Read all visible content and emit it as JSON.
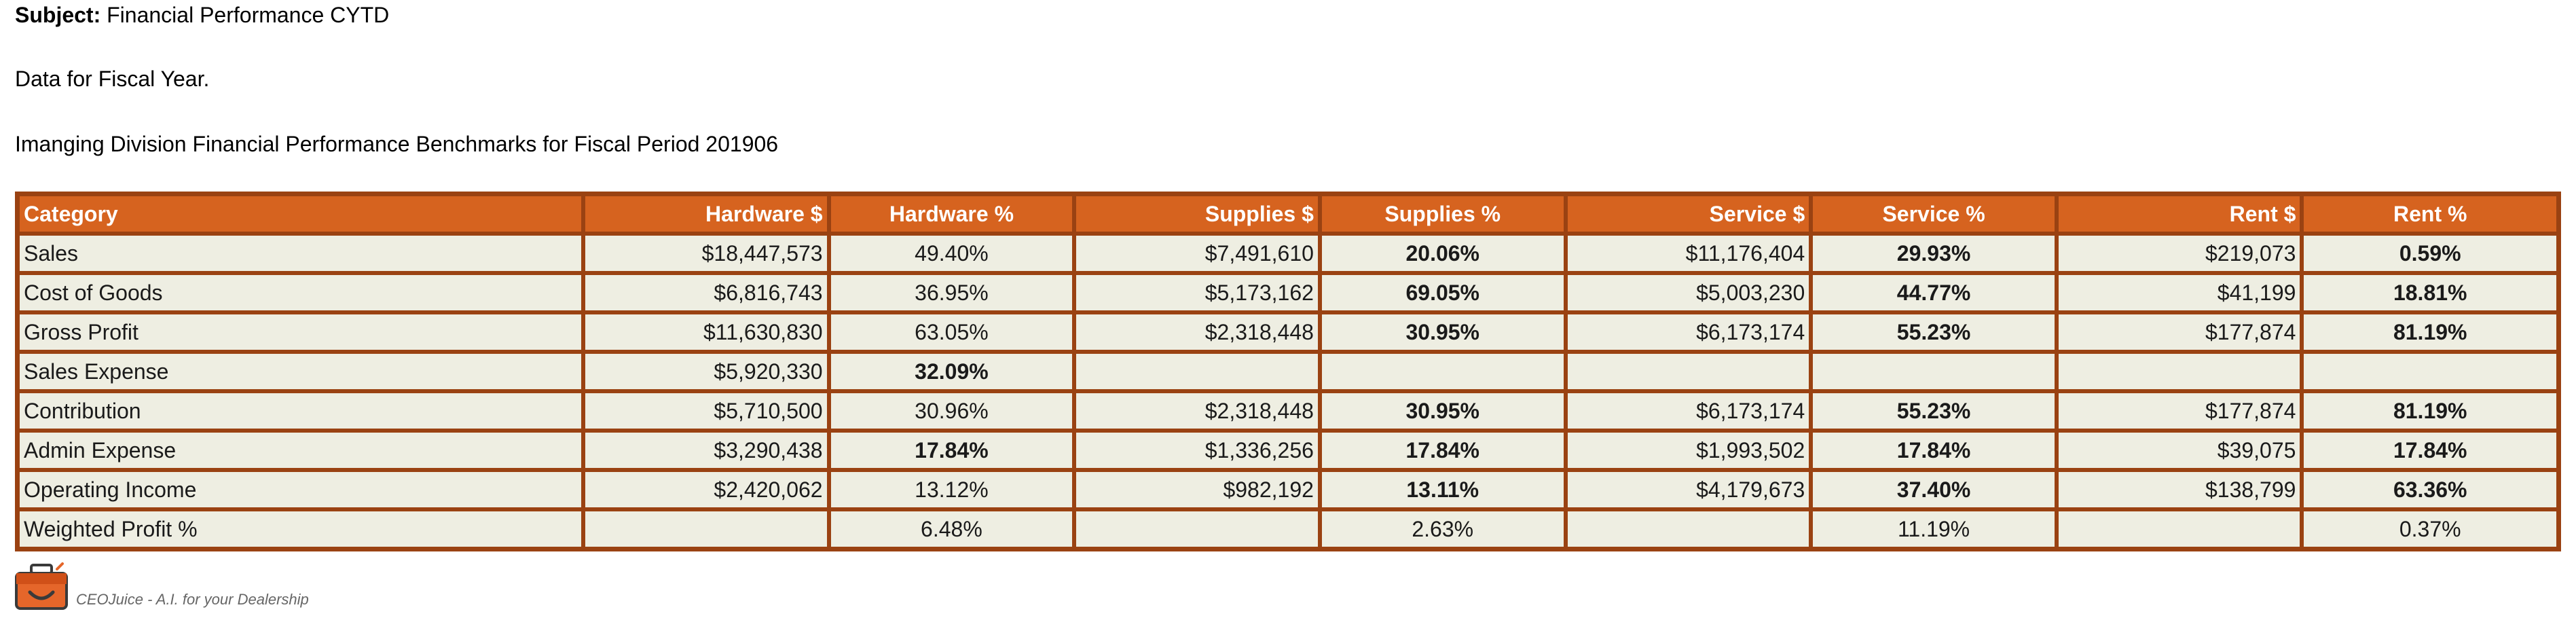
{
  "header": {
    "subject_label": "Subject:",
    "subject_value": " Financial Performance CYTD",
    "line2": "Data for Fiscal Year.",
    "line3": "Imanging Division Financial Performance Benchmarks for Fiscal Period 201906"
  },
  "table": {
    "columns": [
      "Category",
      "Hardware $",
      "Hardware %",
      "Supplies $",
      "Supplies %",
      "Service $",
      "Service %",
      "Rent $",
      "Rent %"
    ],
    "rows": [
      [
        "Sales",
        "$18,447,573",
        "49.40%",
        "$7,491,610",
        "20.06%",
        "$11,176,404",
        "29.93%",
        "$219,073",
        "0.59%"
      ],
      [
        "Cost of Goods",
        "$6,816,743",
        "36.95%",
        "$5,173,162",
        "69.05%",
        "$5,003,230",
        "44.77%",
        "$41,199",
        "18.81%"
      ],
      [
        "Gross Profit",
        "$11,630,830",
        "63.05%",
        "$2,318,448",
        "30.95%",
        "$6,173,174",
        "55.23%",
        "$177,874",
        "81.19%"
      ],
      [
        "Sales Expense",
        "$5,920,330",
        "32.09%",
        "",
        "",
        "",
        "",
        "",
        ""
      ],
      [
        "Contribution",
        "$5,710,500",
        "30.96%",
        "$2,318,448",
        "30.95%",
        "$6,173,174",
        "55.23%",
        "$177,874",
        "81.19%"
      ],
      [
        "Admin Expense",
        "$3,290,438",
        "17.84%",
        "$1,336,256",
        "17.84%",
        "$1,993,502",
        "17.84%",
        "$39,075",
        "17.84%"
      ],
      [
        "Operating Income",
        "$2,420,062",
        "13.12%",
        "$982,192",
        "13.11%",
        "$4,179,673",
        "37.40%",
        "$138,799",
        "63.36%"
      ],
      [
        "Weighted Profit %",
        "",
        "6.48%",
        "",
        "2.63%",
        "",
        "11.19%",
        "",
        "0.37%"
      ]
    ]
  },
  "footer": {
    "logo_icon": "briefcase-logo-icon",
    "tagline": "CEOJuice - A.I. for your Dealership"
  },
  "colors": {
    "header_bg": "#d6631f",
    "border": "#9a4212",
    "cell_bg": "#eeeee2",
    "highlight_text": "#e30613"
  }
}
